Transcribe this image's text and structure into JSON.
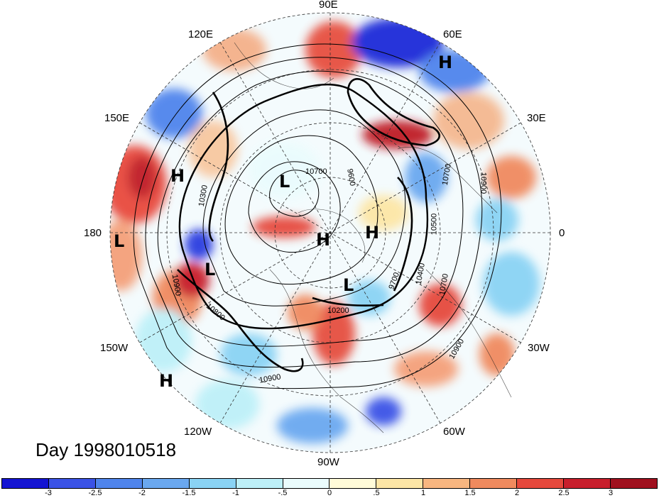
{
  "title": "Day 1998010518",
  "longitude_labels": [
    {
      "id": "90e",
      "text": "90E"
    },
    {
      "id": "60e",
      "text": "60E"
    },
    {
      "id": "30e",
      "text": "30E"
    },
    {
      "id": "0",
      "text": "0"
    },
    {
      "id": "30w",
      "text": "30W"
    },
    {
      "id": "60w",
      "text": "60W"
    },
    {
      "id": "90w",
      "text": "90W"
    },
    {
      "id": "120w",
      "text": "120W"
    },
    {
      "id": "150w",
      "text": "150W"
    },
    {
      "id": "180",
      "text": "180"
    },
    {
      "id": "150e",
      "text": "150E"
    },
    {
      "id": "120e",
      "text": "120E"
    }
  ],
  "pressure_centers": [
    {
      "id": "h1",
      "text": "H"
    },
    {
      "id": "h2",
      "text": "H"
    },
    {
      "id": "h3",
      "text": "H"
    },
    {
      "id": "h4",
      "text": "H"
    },
    {
      "id": "h5",
      "text": "H"
    },
    {
      "id": "l1",
      "text": "L"
    },
    {
      "id": "l2",
      "text": "L"
    },
    {
      "id": "l3",
      "text": "L"
    },
    {
      "id": "l4",
      "text": "L"
    }
  ],
  "contour_labels": [
    {
      "id": "c1",
      "text": "10700"
    },
    {
      "id": "c2",
      "text": "9600"
    },
    {
      "id": "c3",
      "text": "10700"
    },
    {
      "id": "c4",
      "text": "10900"
    },
    {
      "id": "c5",
      "text": "10500"
    },
    {
      "id": "c6",
      "text": "10400"
    },
    {
      "id": "c7",
      "text": "9700"
    },
    {
      "id": "c8",
      "text": "10700"
    },
    {
      "id": "c9",
      "text": "10200"
    },
    {
      "id": "c10",
      "text": "10900"
    },
    {
      "id": "c11",
      "text": "10900"
    },
    {
      "id": "c12",
      "text": "10900"
    },
    {
      "id": "c13",
      "text": "10800"
    },
    {
      "id": "c14",
      "text": "10300"
    }
  ],
  "colorbar": {
    "colors": [
      "#1414d2",
      "#3a52e6",
      "#4f84ec",
      "#6aa8f0",
      "#8ad3f4",
      "#bdf0f8",
      "#eafcfd",
      "#fffbd9",
      "#fde6a6",
      "#f8b680",
      "#f08a5e",
      "#e6483c",
      "#c81e2c",
      "#a0101e"
    ],
    "ticks": [
      "-3",
      "-2.5",
      "-2",
      "-1.5",
      "-1",
      "-.5",
      "0",
      ".5",
      "1",
      "1.5",
      "2",
      "2.5",
      "3"
    ]
  }
}
